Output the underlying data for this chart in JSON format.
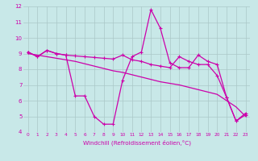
{
  "xlabel": "Windchill (Refroidissement éolien,°C)",
  "xlim": [
    -0.5,
    23.5
  ],
  "ylim": [
    4,
    12
  ],
  "bg_color": "#c8e8e8",
  "line_color": "#cc00aa",
  "grid_color": "#aac8c8",
  "series1_x": [
    0,
    1,
    2,
    3,
    4,
    5,
    6,
    7,
    8,
    9,
    10,
    11,
    12,
    13,
    14,
    15,
    16,
    17,
    18,
    19,
    20,
    21,
    22,
    23
  ],
  "series1_y": [
    9.1,
    8.8,
    9.2,
    9.0,
    8.9,
    8.85,
    8.8,
    8.75,
    8.7,
    8.65,
    8.9,
    8.6,
    8.5,
    8.3,
    8.2,
    8.1,
    8.8,
    8.5,
    8.3,
    8.3,
    7.6,
    6.2,
    4.7,
    5.1
  ],
  "series2_x": [
    0,
    1,
    2,
    3,
    4,
    5,
    6,
    7,
    8,
    9,
    10,
    11,
    12,
    13,
    14,
    15,
    16,
    17,
    18,
    19,
    20,
    21,
    22,
    23
  ],
  "series2_y": [
    9.1,
    8.8,
    9.2,
    9.0,
    8.9,
    6.3,
    6.3,
    5.0,
    4.5,
    4.5,
    7.3,
    8.8,
    9.1,
    11.8,
    10.6,
    8.4,
    8.1,
    8.1,
    8.9,
    8.5,
    8.3,
    6.2,
    4.7,
    5.2
  ],
  "series3_x": [
    0,
    1,
    2,
    3,
    4,
    5,
    6,
    7,
    8,
    9,
    10,
    11,
    12,
    13,
    14,
    15,
    16,
    17,
    18,
    19,
    20,
    21,
    22,
    23
  ],
  "series3_y": [
    9.0,
    8.9,
    8.8,
    8.7,
    8.6,
    8.5,
    8.35,
    8.2,
    8.05,
    7.9,
    7.8,
    7.65,
    7.5,
    7.35,
    7.2,
    7.1,
    7.0,
    6.85,
    6.7,
    6.55,
    6.4,
    6.0,
    5.6,
    5.0
  ]
}
